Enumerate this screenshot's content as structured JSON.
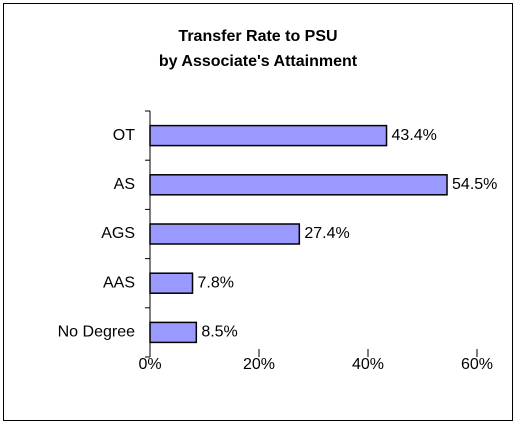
{
  "chart_data": {
    "type": "bar",
    "orientation": "horizontal",
    "title": "Transfer Rate to PSU",
    "subtitle": "by Associate's Attainment",
    "categories": [
      "OT",
      "AS",
      "AGS",
      "AAS",
      "No Degree"
    ],
    "values": [
      43.4,
      54.5,
      27.4,
      7.8,
      8.5
    ],
    "value_labels": [
      "43.4%",
      "54.5%",
      "27.4%",
      "7.8%",
      "8.5%"
    ],
    "color": "#9999ff",
    "xlim": [
      0,
      60
    ],
    "xticks": [
      {
        "value": 0,
        "label": "0%"
      },
      {
        "value": 20,
        "label": "20%"
      },
      {
        "value": 40,
        "label": "40%"
      },
      {
        "value": 60,
        "label": "60%"
      }
    ],
    "grid": false
  }
}
